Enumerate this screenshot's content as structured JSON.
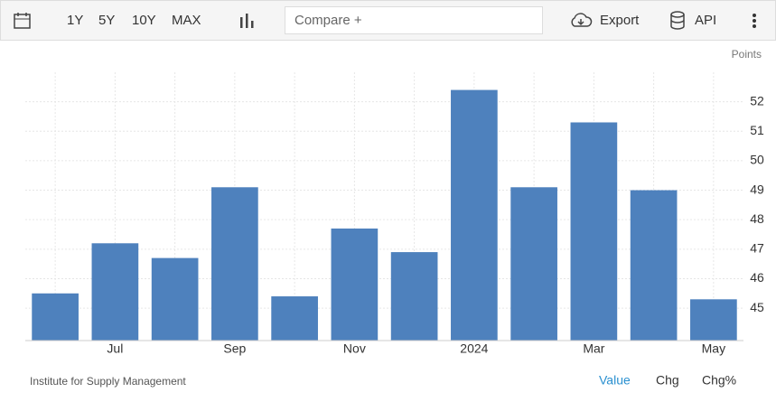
{
  "toolbar": {
    "ranges": [
      "1Y",
      "5Y",
      "10Y",
      "MAX"
    ],
    "compare": "Compare +",
    "export": "Export",
    "api": "API"
  },
  "source": "Institute for Supply Management",
  "tabs": [
    "Value",
    "Chg",
    "Chg%"
  ],
  "chart_data": {
    "type": "bar",
    "y_label": "Points",
    "categories": [
      null,
      "Jul",
      null,
      "Sep",
      null,
      "Nov",
      null,
      "2024",
      null,
      "Mar",
      null,
      "May"
    ],
    "values": [
      45.5,
      47.2,
      46.7,
      49.1,
      45.4,
      47.7,
      46.9,
      52.4,
      49.1,
      51.3,
      49.0,
      45.3
    ],
    "color": "#4e81bd",
    "ylim": [
      43.9,
      53
    ],
    "yticks": [
      45,
      46,
      47,
      48,
      49,
      50,
      51,
      52
    ],
    "grid": true
  }
}
